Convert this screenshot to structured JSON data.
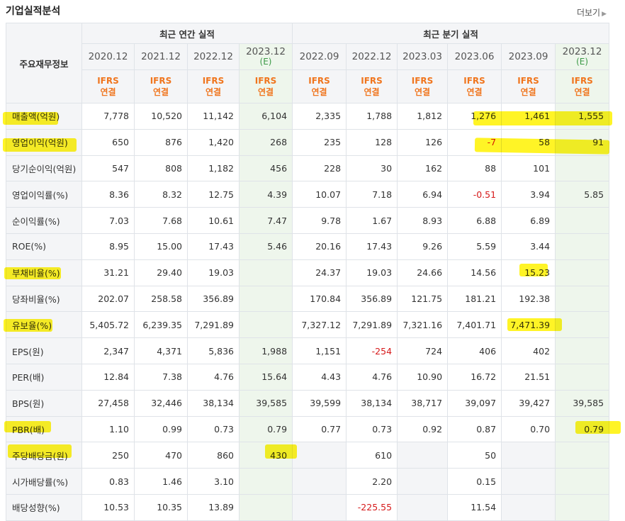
{
  "header": {
    "title": "기업실적분석",
    "more_label": "더보기"
  },
  "table": {
    "row_header_label": "주요재무정보",
    "groups": {
      "annual": "최근 연간 실적",
      "quarter": "최근 분기 실적"
    },
    "periods": [
      "2020.12",
      "2021.12",
      "2022.12",
      "2023.12",
      "2022.09",
      "2022.12",
      "2023.03",
      "2023.06",
      "2023.09",
      "2023.12"
    ],
    "estimate_mark": "(E)",
    "ifrs_label": "IFRS",
    "consol_label": "연결",
    "rows": [
      {
        "label": "매출액(억원)",
        "values": [
          "7,778",
          "10,520",
          "11,142",
          "6,104",
          "2,335",
          "1,788",
          "1,812",
          "1,276",
          "1,461",
          "1,555"
        ]
      },
      {
        "label": "영업이익(억원)",
        "values": [
          "650",
          "876",
          "1,420",
          "268",
          "235",
          "128",
          "126",
          "-7",
          "58",
          "91"
        ]
      },
      {
        "label": "당기순이익(억원)",
        "values": [
          "547",
          "808",
          "1,182",
          "456",
          "228",
          "30",
          "162",
          "88",
          "101",
          ""
        ]
      },
      {
        "label": "영업이익률(%)",
        "values": [
          "8.36",
          "8.32",
          "12.75",
          "4.39",
          "10.07",
          "7.18",
          "6.94",
          "-0.51",
          "3.94",
          "5.85"
        ]
      },
      {
        "label": "순이익률(%)",
        "values": [
          "7.03",
          "7.68",
          "10.61",
          "7.47",
          "9.78",
          "1.67",
          "8.93",
          "6.88",
          "6.89",
          ""
        ]
      },
      {
        "label": "ROE(%)",
        "values": [
          "8.95",
          "15.00",
          "17.43",
          "5.46",
          "20.16",
          "17.43",
          "9.26",
          "5.59",
          "3.44",
          ""
        ]
      },
      {
        "label": "부채비율(%)",
        "values": [
          "31.21",
          "29.40",
          "19.03",
          "",
          "24.37",
          "19.03",
          "24.66",
          "14.56",
          "15.23",
          ""
        ]
      },
      {
        "label": "당좌비율(%)",
        "values": [
          "202.07",
          "258.58",
          "356.89",
          "",
          "170.84",
          "356.89",
          "121.75",
          "181.21",
          "192.38",
          ""
        ]
      },
      {
        "label": "유보율(%)",
        "values": [
          "5,405.72",
          "6,239.35",
          "7,291.89",
          "",
          "7,327.12",
          "7,291.89",
          "7,321.16",
          "7,401.71",
          "7,471.39",
          ""
        ]
      },
      {
        "label": "EPS(원)",
        "values": [
          "2,347",
          "4,371",
          "5,836",
          "1,988",
          "1,151",
          "-254",
          "724",
          "406",
          "402",
          ""
        ]
      },
      {
        "label": "PER(배)",
        "values": [
          "12.84",
          "7.38",
          "4.76",
          "15.64",
          "4.43",
          "4.76",
          "10.90",
          "16.72",
          "21.51",
          ""
        ]
      },
      {
        "label": "BPS(원)",
        "values": [
          "27,458",
          "32,446",
          "38,134",
          "39,585",
          "39,599",
          "38,134",
          "38,717",
          "39,097",
          "39,427",
          "39,585"
        ]
      },
      {
        "label": "PBR(배)",
        "values": [
          "1.10",
          "0.99",
          "0.73",
          "0.79",
          "0.77",
          "0.73",
          "0.92",
          "0.87",
          "0.70",
          "0.79"
        ]
      },
      {
        "label": "주당배당금(원)",
        "values": [
          "250",
          "470",
          "860",
          "430",
          "",
          "610",
          "",
          "50",
          "",
          ""
        ]
      },
      {
        "label": "시가배당률(%)",
        "values": [
          "0.83",
          "1.46",
          "3.10",
          "",
          "",
          "2.20",
          "",
          "0.15",
          "",
          ""
        ]
      },
      {
        "label": "배당성향(%)",
        "values": [
          "10.53",
          "10.35",
          "13.89",
          "",
          "",
          "-225.55",
          "",
          "11.54",
          "",
          ""
        ]
      }
    ]
  },
  "colors": {
    "accent_ifrs": "#f0751d",
    "estimate_bg": "#eef6ec",
    "negative": "#d6191a",
    "highlight": "#fff200"
  }
}
